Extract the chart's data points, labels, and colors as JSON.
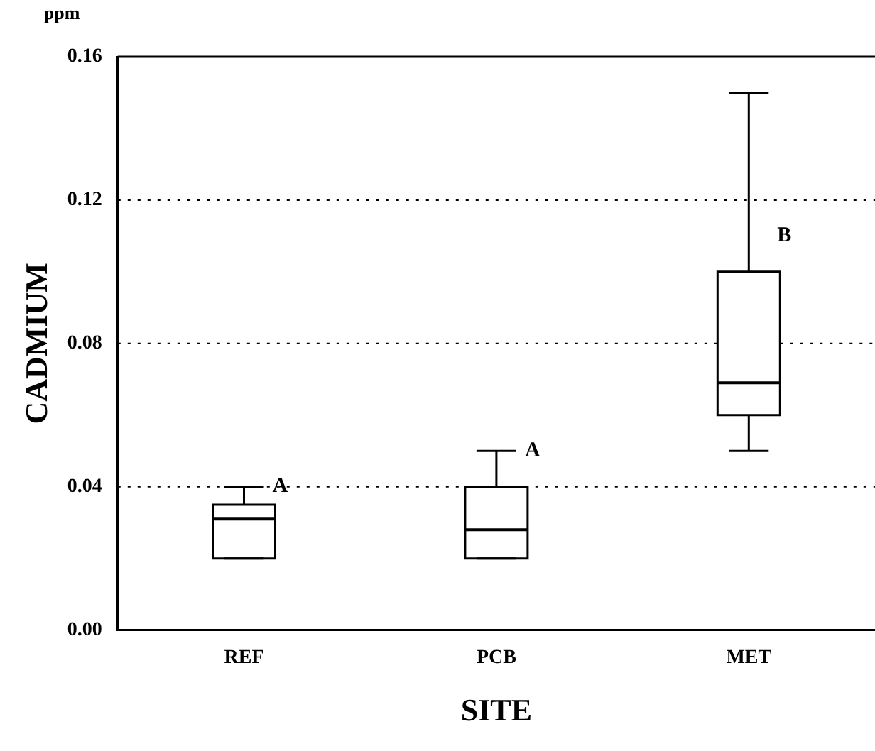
{
  "chart_data": {
    "type": "box",
    "xlabel": "SITE",
    "ylabel": "CADMIUM",
    "categories": [
      "REF",
      "PCB",
      "MET"
    ],
    "boxes": [
      {
        "low": 0.02,
        "q1": 0.02,
        "median": 0.031,
        "q3": 0.035,
        "high": 0.04
      },
      {
        "low": 0.02,
        "q1": 0.02,
        "median": 0.028,
        "q3": 0.04,
        "high": 0.05
      },
      {
        "low": 0.05,
        "q1": 0.06,
        "median": 0.069,
        "q3": 0.1,
        "high": 0.15
      }
    ],
    "color": "#000000",
    "ylim": [
      0,
      0.16
    ],
    "yticks": [
      {
        "value": 0,
        "label": "0.00"
      },
      0.04,
      0.08,
      0.12,
      0.16
    ],
    "grid": "y",
    "legend": false,
    "annotations": [
      "ppm",
      {
        "text": "A",
        "x": "REF",
        "y": 0.04
      },
      {
        "text": "A",
        "x": "PCB",
        "y": 0.05
      },
      {
        "text": "B",
        "x": "MET",
        "y": 0.11
      }
    ]
  }
}
